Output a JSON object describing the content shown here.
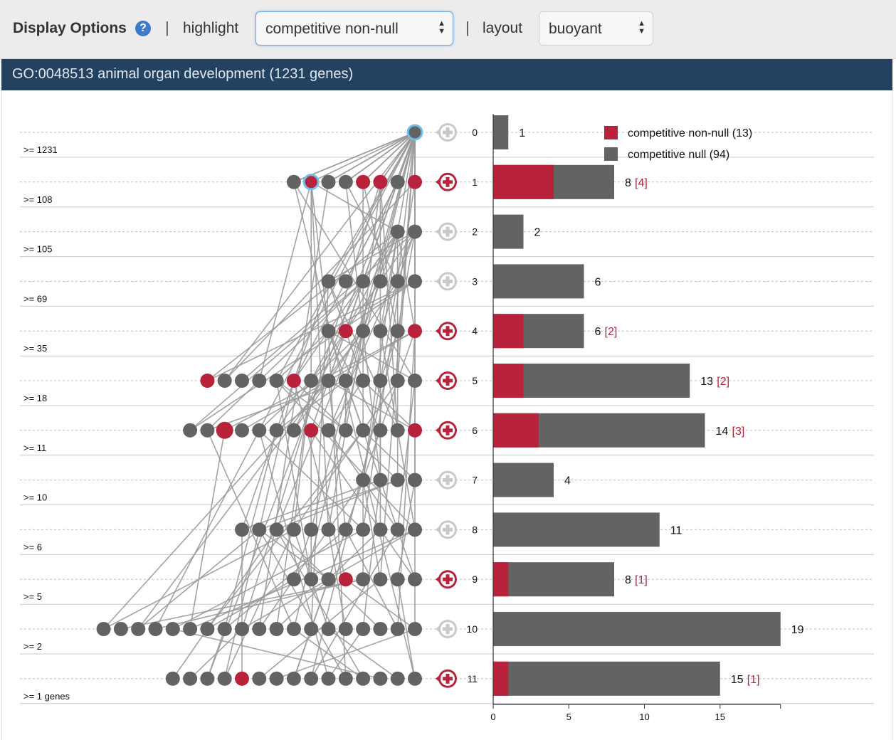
{
  "toolbar": {
    "title": "Display Options",
    "help_icon": "question-icon",
    "separator": "|",
    "highlight_label": "highlight",
    "highlight_value": "competitive non-null",
    "layout_label": "layout",
    "layout_value": "buoyant"
  },
  "banner": {
    "title": "GO:0048513 animal organ development (1231 genes)"
  },
  "colors": {
    "non_null": "#b8233b",
    "null": "#636363",
    "banner": "#22425f",
    "accent": "#6ec0ea"
  },
  "chart_data": {
    "type": "bar",
    "orientation": "horizontal",
    "x_axis": {
      "ticks": [
        0,
        5,
        10,
        15
      ],
      "xlim": [
        0,
        19
      ]
    },
    "legend": {
      "placement": "top-right",
      "entries": [
        {
          "name": "competitive non-null (13)",
          "color": "#b8233b"
        },
        {
          "name": "competitive null (94)",
          "color": "#636363"
        }
      ]
    },
    "levels": [
      {
        "level": "0",
        "threshold": ">= 1231",
        "total": 1,
        "non_null": 0,
        "total_label": "1",
        "nn_label": "",
        "highlighted": false
      },
      {
        "level": "1",
        "threshold": ">= 108",
        "total": 8,
        "non_null": 4,
        "total_label": "8",
        "nn_label": "[4]",
        "highlighted": true
      },
      {
        "level": "2",
        "threshold": ">= 105",
        "total": 2,
        "non_null": 0,
        "total_label": "2",
        "nn_label": "",
        "highlighted": false
      },
      {
        "level": "3",
        "threshold": ">= 69",
        "total": 6,
        "non_null": 0,
        "total_label": "6",
        "nn_label": "",
        "highlighted": false
      },
      {
        "level": "4",
        "threshold": ">= 35",
        "total": 6,
        "non_null": 2,
        "total_label": "6",
        "nn_label": "[2]",
        "highlighted": true
      },
      {
        "level": "5",
        "threshold": ">= 18",
        "total": 13,
        "non_null": 2,
        "total_label": "13",
        "nn_label": "[2]",
        "highlighted": true
      },
      {
        "level": "6",
        "threshold": ">= 11",
        "total": 14,
        "non_null": 3,
        "total_label": "14",
        "nn_label": "[3]",
        "highlighted": true
      },
      {
        "level": "7",
        "threshold": ">= 10",
        "total": 4,
        "non_null": 0,
        "total_label": "4",
        "nn_label": "",
        "highlighted": false
      },
      {
        "level": "8",
        "threshold": ">= 6",
        "total": 11,
        "non_null": 0,
        "total_label": "11",
        "nn_label": "",
        "highlighted": false
      },
      {
        "level": "9",
        "threshold": ">= 5",
        "total": 8,
        "non_null": 1,
        "total_label": "8",
        "nn_label": "[1]",
        "highlighted": true
      },
      {
        "level": "10",
        "threshold": ">= 2",
        "total": 19,
        "non_null": 0,
        "total_label": "19",
        "nn_label": "",
        "highlighted": false
      },
      {
        "level": "11",
        "threshold": ">= 1 genes",
        "total": 15,
        "non_null": 1,
        "total_label": "15",
        "nn_label": "[1]",
        "highlighted": true
      }
    ]
  }
}
